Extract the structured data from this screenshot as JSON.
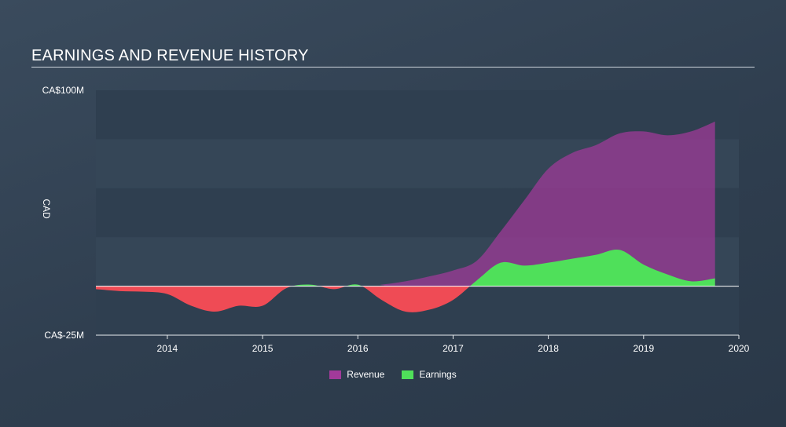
{
  "title": "EARNINGS AND REVENUE HISTORY",
  "chart_data": {
    "type": "area",
    "title": "EARNINGS AND REVENUE HISTORY",
    "xlabel": "",
    "ylabel": "CAD",
    "xlim": [
      2013.25,
      2020.0
    ],
    "ylim": [
      -25,
      100
    ],
    "x_ticks": [
      2014,
      2015,
      2016,
      2017,
      2018,
      2019,
      2020
    ],
    "x_tick_labels": [
      "2014",
      "2015",
      "2016",
      "2017",
      "2018",
      "2019",
      "2020"
    ],
    "y_tick_labels": [
      {
        "value": 100,
        "label": "CA$100M"
      },
      {
        "value": -25,
        "label": "CA$-25M"
      }
    ],
    "zero_line": 0,
    "grid": "horizontal bands",
    "legend_position": "bottom-center",
    "series": [
      {
        "name": "Revenue",
        "color": "#a23a9a",
        "x": [
          2013.25,
          2016.0,
          2016.25,
          2016.5,
          2016.75,
          2017.0,
          2017.25,
          2017.5,
          2017.75,
          2018.0,
          2018.25,
          2018.5,
          2018.75,
          2019.0,
          2019.25,
          2019.5,
          2019.75
        ],
        "values": [
          0,
          0,
          0.8,
          2.5,
          5,
          8,
          13,
          28,
          44,
          60,
          68,
          72,
          78,
          79,
          77,
          79,
          84
        ]
      },
      {
        "name": "Earnings",
        "color": "#4fe05a",
        "positive_color": "#4fe05a",
        "negative_color": "#ef4b55",
        "x": [
          2013.25,
          2013.5,
          2013.75,
          2014.0,
          2014.25,
          2014.5,
          2014.75,
          2015.0,
          2015.25,
          2015.5,
          2015.75,
          2016.0,
          2016.25,
          2016.5,
          2016.75,
          2017.0,
          2017.25,
          2017.5,
          2017.75,
          2018.0,
          2018.25,
          2018.5,
          2018.75,
          2019.0,
          2019.25,
          2019.5,
          2019.75
        ],
        "values": [
          -1.5,
          -2.5,
          -2.8,
          -4,
          -10,
          -13,
          -10,
          -10,
          -1,
          0.8,
          -1.5,
          0.8,
          -7,
          -13,
          -12,
          -7,
          3,
          12,
          10.5,
          12,
          14,
          16,
          18.5,
          11,
          6,
          2.5,
          4
        ]
      }
    ]
  }
}
